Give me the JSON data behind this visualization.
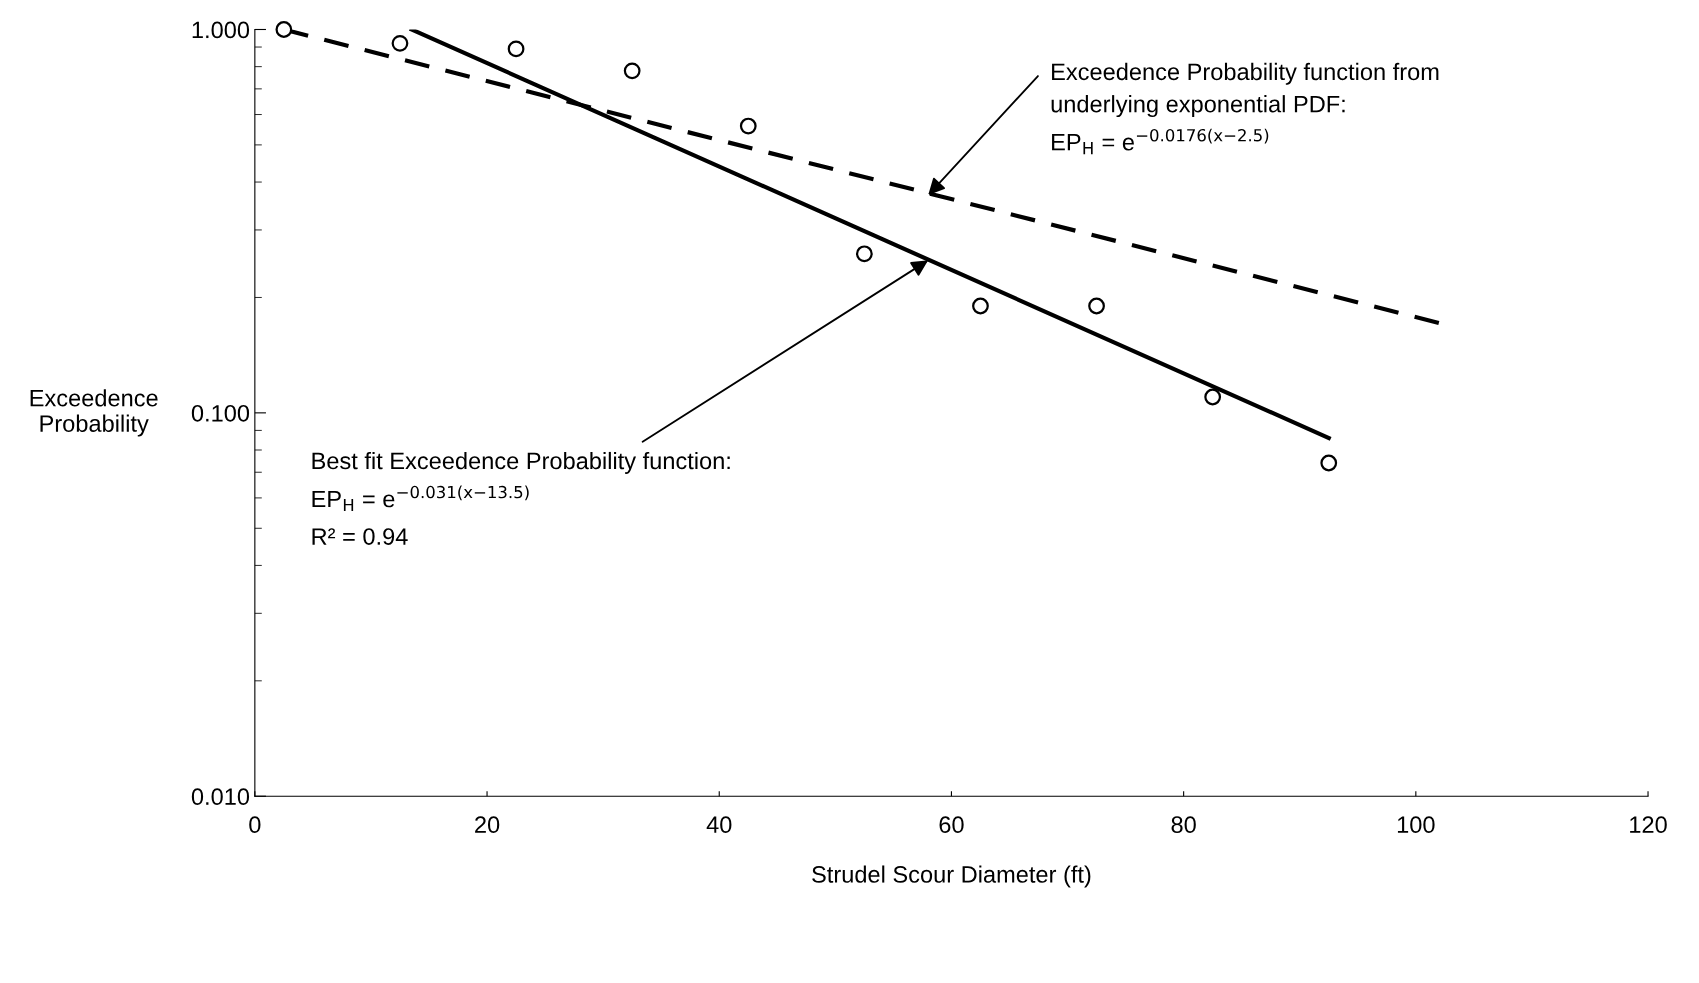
{
  "chart_data": {
    "type": "scatter",
    "xlabel": "Strudel Scour Diameter (ft)",
    "ylabel": "Exceedence\nProbability",
    "log": "y",
    "xlim": [
      0,
      120
    ],
    "xticks": [
      0,
      20,
      40,
      60,
      80,
      100,
      120
    ],
    "ylim": [
      0.01,
      1.0
    ],
    "yticks": [
      {
        "value": 0.01,
        "label": "0.010"
      },
      {
        "value": 0.1,
        "label": "0.100"
      },
      {
        "value": 1.0,
        "label": "1.000"
      }
    ],
    "grid": false,
    "legend": false,
    "series": [
      {
        "color": "#000000",
        "marker": "circle",
        "x": [
          2.5,
          12.5,
          22.5,
          32.5,
          42.5,
          52.5,
          62.5,
          72.5,
          82.5,
          92.5
        ],
        "values": [
          1.0,
          0.92,
          0.89,
          0.78,
          0.56,
          0.26,
          0.19,
          0.19,
          0.11,
          0.074
        ]
      },
      {
        "type": "line",
        "color": "#000000",
        "line_style": "solid",
        "x": [
          13.5,
          92.5
        ],
        "values": [
          1.0,
          0.086
        ]
      },
      {
        "type": "line",
        "color": "#000000",
        "line_style": "dashed",
        "x": [
          2.5,
          102.5
        ],
        "values": [
          1.0,
          0.17
        ]
      }
    ],
    "annotations": [
      {
        "text": "Exceedence Probability function from\nunderlying exponential PDF:\nEP$_{H}$ = e$^{−0.0176(x−2.5)}$",
        "x": 58,
        "y": 0.37
      },
      {
        "text": "Best fit Exceedence Probability function:\nEP$_{H}$ = e$^{−0.031(x−13.5)}$",
        "x": 58,
        "y": 0.25
      },
      "R² = 0.94"
    ]
  }
}
